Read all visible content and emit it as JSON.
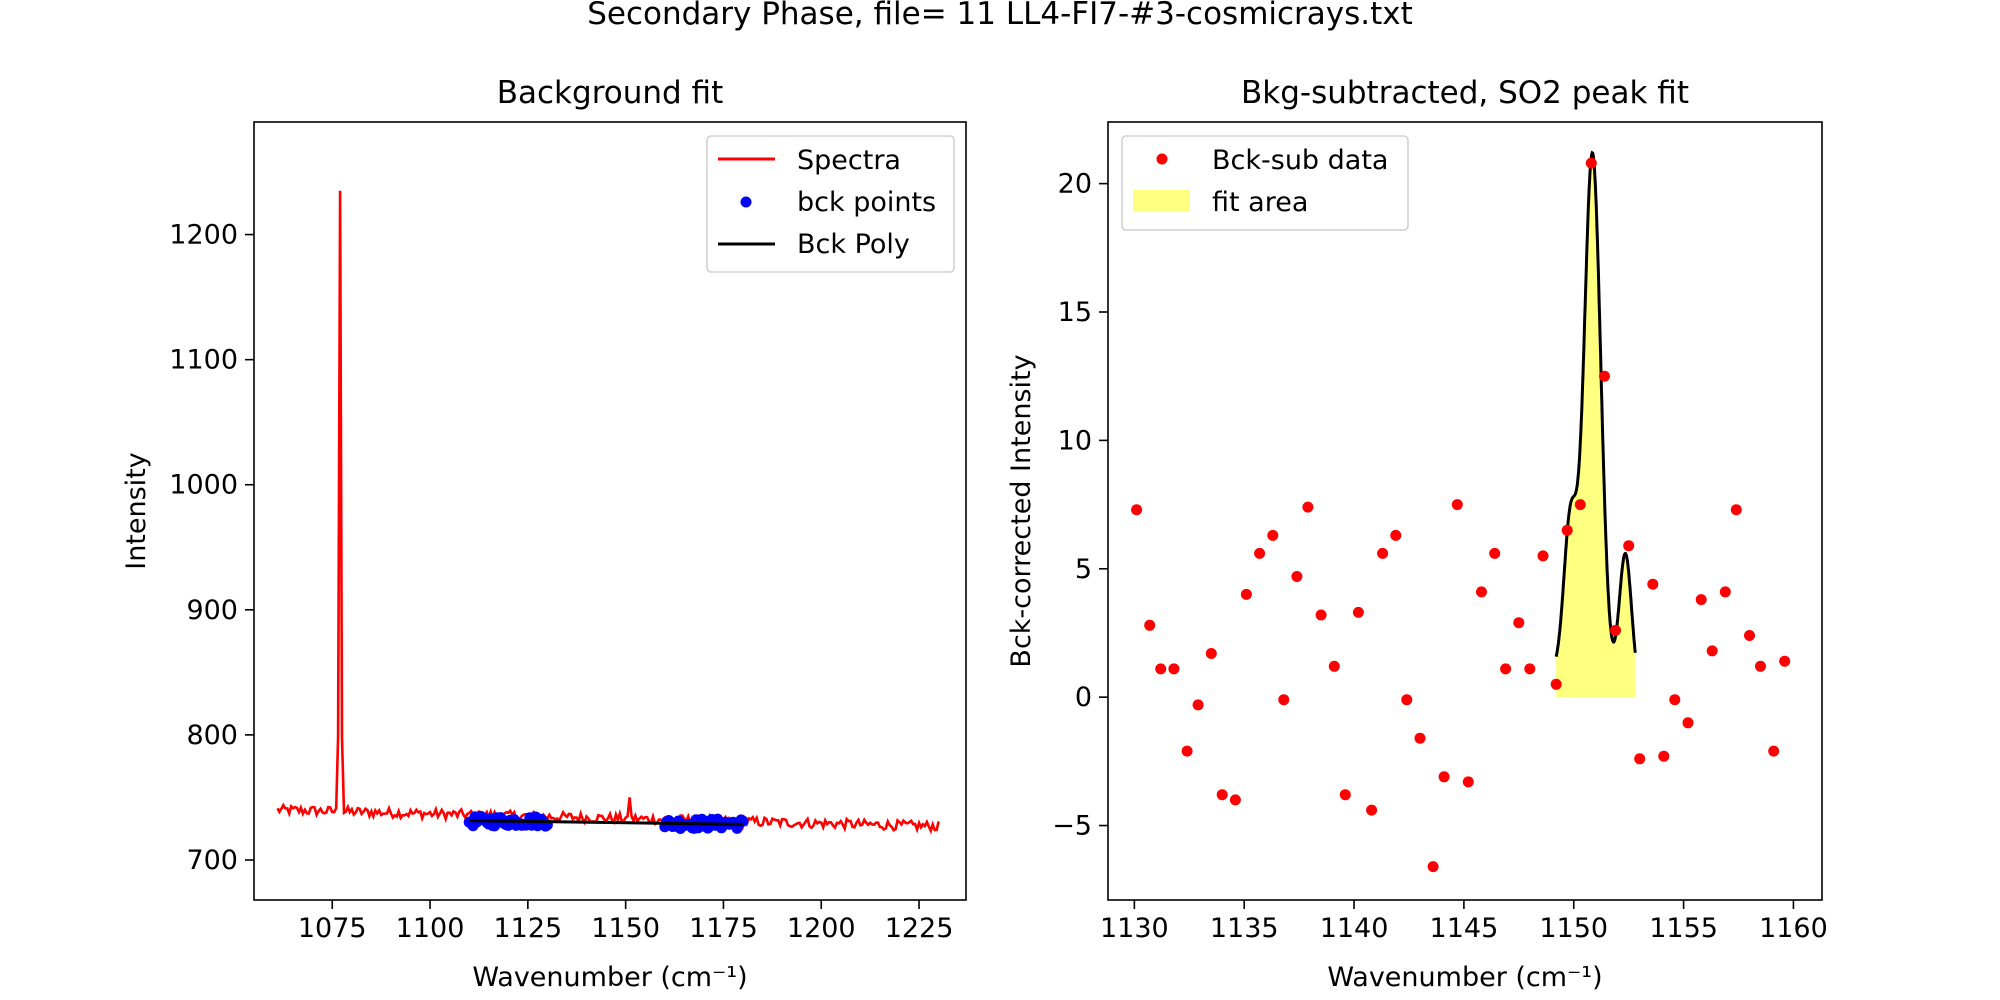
{
  "suptitle": "Secondary Phase, file= 11 LL4-FI7-#3-cosmicrays.txt",
  "chart_data": [
    {
      "type": "line",
      "title": "Background fit",
      "xlabel": "Wavenumber (cm⁻¹)",
      "ylabel": "Intensity",
      "xlim": [
        1055,
        1237
      ],
      "ylim": [
        668,
        1290
      ],
      "xticks": [
        1075,
        1100,
        1125,
        1150,
        1175,
        1200,
        1225
      ],
      "yticks": [
        700,
        800,
        900,
        1000,
        1100,
        1200
      ],
      "legend_position": "upper right",
      "colors": {
        "spectra": "#ff0000",
        "bck_points": "#0000ff",
        "bck_poly": "#000000"
      },
      "series": [
        {
          "name": "Spectra",
          "kind": "line",
          "x_start": 1061,
          "x_end": 1230,
          "x_step": 0.5,
          "baseline": {
            "intercept_at_1061": 740,
            "slope_per_unit": -0.0775
          },
          "noise_amplitude": 4,
          "spikes": [
            {
              "x": 1077,
              "y": 1235
            },
            {
              "x": 1151,
              "y": 750
            }
          ]
        },
        {
          "name": "bck points",
          "kind": "scatter",
          "ranges": [
            [
              1110,
              1130
            ],
            [
              1160,
              1180
            ]
          ],
          "y_center_ranges": [
            731,
            729
          ],
          "noise_amplitude": 4
        },
        {
          "name": "Bck Poly",
          "kind": "line",
          "x": [
            1110,
            1180
          ],
          "y": [
            731.5,
            728.5
          ]
        }
      ]
    },
    {
      "type": "scatter",
      "title": "Bkg-subtracted, SO2 peak fit",
      "xlabel": "Wavenumber (cm⁻¹)",
      "ylabel": "Bck-corrected Intensity",
      "xlim": [
        1128.8,
        1161.3
      ],
      "ylim": [
        -7.9,
        22.4
      ],
      "xticks": [
        1130,
        1135,
        1140,
        1145,
        1150,
        1155,
        1160
      ],
      "yticks": [
        -5,
        0,
        5,
        10,
        15,
        20
      ],
      "legend_position": "upper left",
      "colors": {
        "data": "#ff0000",
        "fit_area": "#ffff80",
        "fit_line": "#000000"
      },
      "series": [
        {
          "name": "Bck-sub data",
          "kind": "scatter",
          "points": [
            [
              1130.1,
              7.3
            ],
            [
              1130.7,
              2.8
            ],
            [
              1131.2,
              1.1
            ],
            [
              1131.8,
              1.1
            ],
            [
              1132.4,
              -2.1
            ],
            [
              1132.9,
              -0.3
            ],
            [
              1133.5,
              1.7
            ],
            [
              1134.0,
              -3.8
            ],
            [
              1134.6,
              -4.0
            ],
            [
              1135.1,
              4.0
            ],
            [
              1135.7,
              5.6
            ],
            [
              1136.3,
              6.3
            ],
            [
              1136.8,
              -0.1
            ],
            [
              1137.4,
              4.7
            ],
            [
              1137.9,
              7.4
            ],
            [
              1138.5,
              3.2
            ],
            [
              1139.1,
              1.2
            ],
            [
              1139.6,
              -3.8
            ],
            [
              1140.2,
              3.3
            ],
            [
              1140.8,
              -4.4
            ],
            [
              1141.3,
              5.6
            ],
            [
              1141.9,
              6.3
            ],
            [
              1142.4,
              -0.1
            ],
            [
              1143.0,
              -1.6
            ],
            [
              1143.6,
              -6.6
            ],
            [
              1144.1,
              -3.1
            ],
            [
              1144.7,
              7.5
            ],
            [
              1145.2,
              -3.3
            ],
            [
              1145.8,
              4.1
            ],
            [
              1146.4,
              5.6
            ],
            [
              1146.9,
              1.1
            ],
            [
              1147.5,
              2.9
            ],
            [
              1148.0,
              1.1
            ],
            [
              1148.6,
              5.5
            ],
            [
              1149.2,
              0.5
            ],
            [
              1149.7,
              6.5
            ],
            [
              1150.3,
              7.5
            ],
            [
              1150.8,
              20.8
            ],
            [
              1151.4,
              12.5
            ],
            [
              1151.9,
              2.6
            ],
            [
              1152.5,
              5.9
            ],
            [
              1153.0,
              -2.4
            ],
            [
              1153.6,
              4.4
            ],
            [
              1154.1,
              -2.3
            ],
            [
              1154.6,
              -0.1
            ],
            [
              1155.2,
              -1.0
            ],
            [
              1155.8,
              3.8
            ],
            [
              1156.3,
              1.8
            ],
            [
              1156.9,
              4.1
            ],
            [
              1157.4,
              7.3
            ],
            [
              1158.0,
              2.4
            ],
            [
              1158.5,
              1.2
            ],
            [
              1159.1,
              -2.1
            ],
            [
              1159.6,
              1.4
            ]
          ]
        },
        {
          "name": "fit area",
          "kind": "area",
          "x_range": [
            1149.2,
            1152.8
          ],
          "baseline": 0,
          "components": [
            {
              "center": 1149.85,
              "amplitude": 6.0,
              "sigma": 0.3
            },
            {
              "center": 1150.85,
              "amplitude": 20.5,
              "sigma": 0.38
            },
            {
              "center": 1152.35,
              "amplitude": 5.2,
              "sigma": 0.28
            }
          ],
          "offset": 1.0
        }
      ]
    }
  ]
}
